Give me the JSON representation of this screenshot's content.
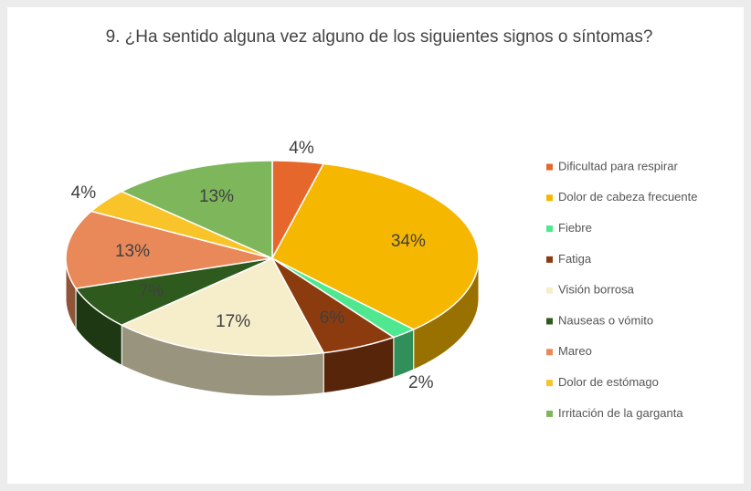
{
  "chart_data": {
    "type": "pie3d",
    "title": "9. ¿Ha sentido alguna vez alguno de los siguientes signos o síntomas?",
    "series": [
      {
        "name": "Dificultad para respirar",
        "color": "#e5672b",
        "values": [
          4
        ]
      },
      {
        "name": "Dolor de cabeza frecuente",
        "color": "#f6b700",
        "values": [
          34
        ]
      },
      {
        "name": "Fiebre",
        "color": "#4fe890",
        "values": [
          2
        ]
      },
      {
        "name": "Fatiga",
        "color": "#8c3b0f",
        "values": [
          6
        ]
      },
      {
        "name": "Visión borrosa",
        "color": "#f6eecb",
        "values": [
          17
        ]
      },
      {
        "name": "Nauseas o vómito",
        "color": "#2f5a1d",
        "values": [
          7
        ]
      },
      {
        "name": "Mareo",
        "color": "#e9895a",
        "values": [
          13
        ]
      },
      {
        "name": "Dolor de estómago",
        "color": "#f8c42a",
        "values": [
          4
        ]
      },
      {
        "name": "Irritación de la garganta",
        "color": "#7db65b",
        "values": [
          13
        ]
      }
    ],
    "value_labels": [
      "4%",
      "34%",
      "2%",
      "6%",
      "17%",
      "7%",
      "13%",
      "4%",
      "13%"
    ],
    "legend": "right"
  }
}
